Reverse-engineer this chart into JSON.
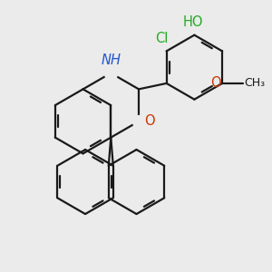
{
  "background_color": "#ebebeb",
  "bond_color": "#1a1a1a",
  "bond_width": 1.6,
  "colors": {
    "N": "#2255cc",
    "O": "#cc3300",
    "Cl": "#22aa22",
    "HO": "#22aa22"
  },
  "font_size": 10.5,
  "font_size_small": 9.0
}
